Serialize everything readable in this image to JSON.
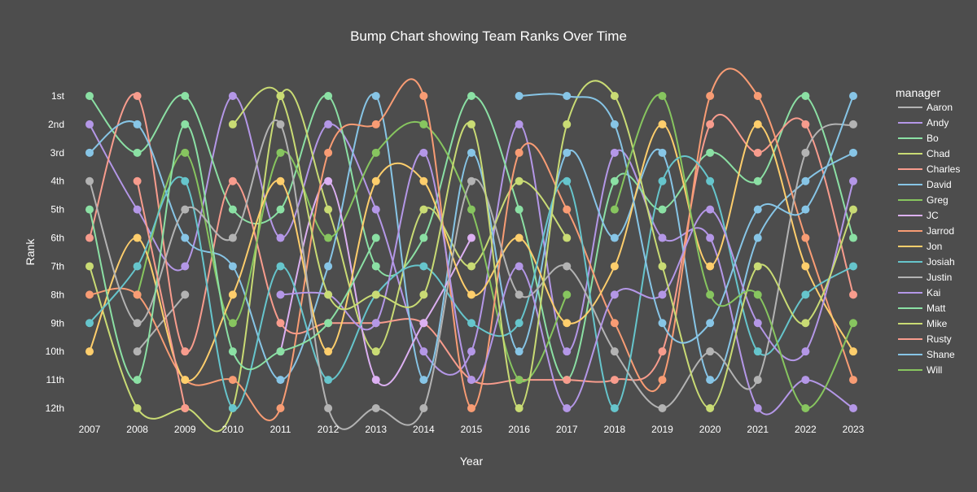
{
  "chart_data": {
    "type": "line",
    "title": "Bump Chart showing Team Ranks Over Time",
    "xlabel": "Year",
    "ylabel": "Rank",
    "legend_title": "manager",
    "legend_position": "right",
    "grid": false,
    "line_shape": "spline",
    "x": [
      2007,
      2008,
      2009,
      2010,
      2011,
      2012,
      2013,
      2014,
      2015,
      2016,
      2017,
      2018,
      2019,
      2020,
      2021,
      2022,
      2023
    ],
    "x_tick_labels": [
      "2007",
      "2008",
      "2009",
      "2010",
      "2011",
      "2012",
      "2013",
      "2014",
      "2015",
      "2016",
      "2017",
      "2018",
      "2019",
      "2020",
      "2021",
      "2022",
      "2023"
    ],
    "y_tick_labels": [
      "1st",
      "2nd",
      "3rd",
      "4th",
      "5th",
      "6th",
      "7th",
      "8th",
      "9th",
      "10th",
      "11th",
      "12th"
    ],
    "ylim": [
      1,
      12
    ],
    "y_reversed": true,
    "series": [
      {
        "name": "Aaron",
        "color": "#b3b3b3",
        "values": [
          null,
          10,
          8,
          null,
          null,
          null,
          null,
          null,
          null,
          null,
          null,
          null,
          null,
          null,
          null,
          null,
          null
        ]
      },
      {
        "name": "Andy",
        "color": "#b497e7",
        "values": [
          2,
          5,
          7,
          1,
          6,
          2,
          5,
          10,
          10,
          2,
          10,
          3,
          6,
          6,
          12,
          11,
          12
        ]
      },
      {
        "name": "Bo",
        "color": "#8be0a4",
        "values": [
          1,
          3,
          1,
          5,
          5,
          1,
          7,
          6,
          1,
          5,
          11,
          4,
          5,
          3,
          4,
          1,
          6
        ]
      },
      {
        "name": "Chad",
        "color": "#c9db74",
        "values": [
          7,
          12,
          12,
          12,
          1,
          5,
          10,
          5,
          7,
          4,
          6,
          null,
          null,
          null,
          null,
          null,
          null
        ]
      },
      {
        "name": "Charles",
        "color": "#f89c8d",
        "values": [
          6,
          1,
          10,
          4,
          9,
          9,
          9,
          9,
          11,
          11,
          11,
          11,
          10,
          2,
          3,
          2,
          8
        ]
      },
      {
        "name": "David",
        "color": "#87c5e6",
        "values": [
          3,
          2,
          6,
          7,
          11,
          7,
          1,
          11,
          3,
          10,
          3,
          6,
          3,
          11,
          6,
          4,
          3
        ]
      },
      {
        "name": "Greg",
        "color": "#87c55f",
        "values": [
          null,
          8,
          3,
          9,
          3,
          6,
          3,
          2,
          5,
          11,
          8,
          null,
          null,
          null,
          null,
          null,
          null
        ]
      },
      {
        "name": "JC",
        "color": "#dcb0f2",
        "values": [
          null,
          null,
          null,
          null,
          10,
          4,
          11,
          9,
          6,
          null,
          null,
          null,
          null,
          null,
          null,
          null,
          null
        ]
      },
      {
        "name": "Jarrod",
        "color": "#f89c74",
        "values": [
          8,
          8,
          11,
          11,
          12,
          3,
          2,
          1,
          12,
          3,
          5,
          9,
          11,
          1,
          1,
          6,
          11
        ]
      },
      {
        "name": "Jon",
        "color": "#fece6c",
        "values": [
          10,
          6,
          11,
          8,
          4,
          10,
          4,
          4,
          8,
          6,
          9,
          7,
          2,
          7,
          2,
          7,
          10
        ]
      },
      {
        "name": "Josiah",
        "color": "#66c5cc",
        "values": [
          9,
          7,
          4,
          12,
          7,
          11,
          8,
          7,
          9,
          9,
          4,
          12,
          4,
          4,
          10,
          8,
          7
        ]
      },
      {
        "name": "Justin",
        "color": "#b3b3b3",
        "values": [
          4,
          9,
          5,
          6,
          2,
          12,
          12,
          12,
          4,
          8,
          7,
          10,
          12,
          10,
          11,
          3,
          2
        ]
      },
      {
        "name": "Kai",
        "color": "#b497e7",
        "values": [
          null,
          null,
          null,
          null,
          8,
          8,
          9,
          3,
          11,
          7,
          12,
          8,
          8,
          5,
          9,
          10,
          4
        ]
      },
      {
        "name": "Matt",
        "color": "#8be0a4",
        "values": [
          5,
          11,
          2,
          10,
          10,
          9,
          6,
          null,
          null,
          null,
          null,
          null,
          null,
          null,
          null,
          null,
          null
        ]
      },
      {
        "name": "Mike",
        "color": "#c9db74",
        "values": [
          null,
          null,
          null,
          2,
          1,
          8,
          8,
          8,
          2,
          12,
          2,
          1,
          7,
          12,
          7,
          9,
          5
        ]
      },
      {
        "name": "Rusty",
        "color": "#f89c8d",
        "values": [
          null,
          4,
          12,
          null,
          null,
          null,
          null,
          null,
          null,
          null,
          null,
          null,
          null,
          null,
          null,
          null,
          null
        ]
      },
      {
        "name": "Shane",
        "color": "#87c5e6",
        "values": [
          null,
          null,
          null,
          null,
          null,
          null,
          null,
          null,
          null,
          1,
          1,
          2,
          9,
          9,
          5,
          5,
          1
        ]
      },
      {
        "name": "Will",
        "color": "#87c55f",
        "values": [
          null,
          null,
          null,
          null,
          null,
          null,
          null,
          null,
          null,
          null,
          null,
          5,
          1,
          8,
          8,
          12,
          9
        ]
      }
    ]
  }
}
